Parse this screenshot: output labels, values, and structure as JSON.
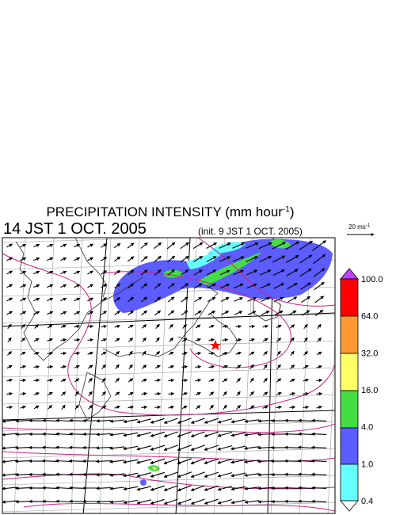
{
  "title": {
    "text": "PRECIPITATION INTENSITY (mm hour",
    "superscript": "-1",
    "close": ")"
  },
  "valid_time": "14 JST 1 OCT. 2005",
  "init_time": "(init. 9 JST 1 OCT. 2005)",
  "reference_vector": {
    "value": "20 ms",
    "superscript": "-1"
  },
  "colorbar": {
    "labels": [
      "0.4",
      "1.0",
      "4.0",
      "16.0",
      "32.0",
      "64.0",
      "100.0"
    ]
  }
}
